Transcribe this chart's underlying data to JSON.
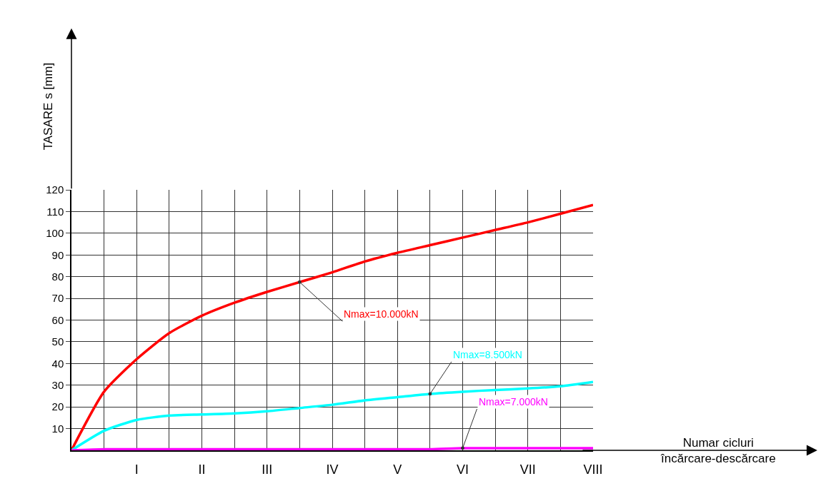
{
  "chart_data": {
    "type": "line",
    "xlabel": "Numar cicluri\nîncărcare-descărcare",
    "ylabel": "TASARE s [mm]",
    "categories": [
      null,
      null,
      "I",
      null,
      "II",
      null,
      "III",
      null,
      "IV",
      null,
      "V",
      null,
      "VI",
      null,
      "VII",
      null,
      "VIII"
    ],
    "series": [
      {
        "name": "Nmax=10.000kN",
        "color": "#ff0000",
        "values": [
          0,
          27,
          42,
          54,
          62,
          68,
          73,
          77.5,
          82,
          87,
          91,
          94.5,
          98,
          101.5,
          105,
          109,
          113
        ]
      },
      {
        "name": "Nmax=8.500kN",
        "color": "#00ffff",
        "values": [
          0,
          9,
          14,
          16,
          16.5,
          17,
          18,
          19.5,
          21,
          23,
          24.5,
          26,
          27,
          27.8,
          28.5,
          29.5,
          31.5
        ]
      },
      {
        "name": "Nmax=7.000kN",
        "color": "#ff00ff",
        "values": [
          0,
          0.5,
          0.5,
          0.5,
          0.5,
          0.5,
          0.5,
          0.5,
          0.5,
          0.5,
          0.5,
          0.5,
          1,
          1,
          1,
          1,
          1
        ]
      }
    ],
    "ylim": [
      0,
      120
    ],
    "yticks": [
      10,
      20,
      30,
      40,
      50,
      60,
      70,
      80,
      90,
      100,
      110,
      120
    ],
    "grid": true,
    "legend": false,
    "marker": "none",
    "line_style": "solid"
  }
}
